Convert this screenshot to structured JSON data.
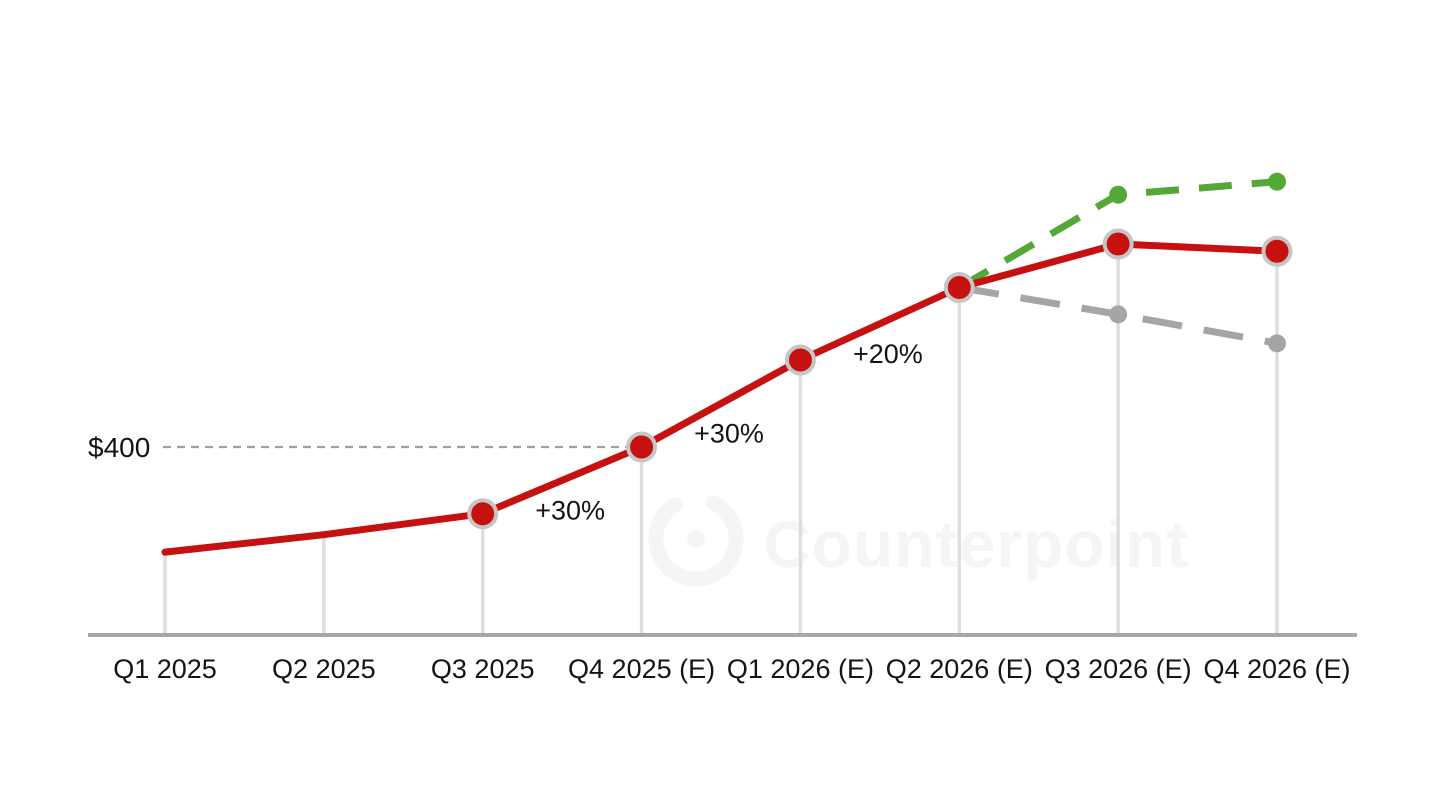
{
  "watermark": {
    "brand": "Counterpoint"
  },
  "colors": {
    "red_series": "#c61111",
    "green_series": "#54a836",
    "gray_series": "#a5a5a5",
    "marker_ring": "#c6c6c6",
    "axis": "#a8a8a8",
    "dropline": "#dedede",
    "ref_line": "#a0a0a0",
    "text": "#141414",
    "watermark": "#f5f5f5"
  },
  "chart_data": {
    "type": "line",
    "title": "",
    "xlabel": "",
    "ylabel": "",
    "unit": "$",
    "grid": "droplines",
    "y_axis_visible": false,
    "legend_position": "none",
    "categories": [
      "Q1 2025",
      "Q2 2025",
      "Q3 2025",
      "Q4 2025 (E)",
      "Q1 2026 (E)",
      "Q2 2026 (E)",
      "Q3 2026 (E)",
      "Q4 2026 (E)"
    ],
    "y_reference": {
      "label": "$400",
      "value": 400,
      "at_category": "Q4 2025 (E)"
    },
    "series": [
      {
        "name": "red-solid",
        "color": "#c61111",
        "line_style": "solid",
        "marker": "ringed-dot",
        "values": [
          255,
          279,
          308,
          400,
          520,
          620,
          680,
          670
        ],
        "markers_at": [
          2,
          3,
          4,
          5,
          6,
          7
        ]
      },
      {
        "name": "green-dashed",
        "color": "#54a836",
        "line_style": "dashed",
        "dash": "33 20",
        "marker": "dot",
        "values": [
          null,
          null,
          null,
          null,
          null,
          620,
          748,
          766
        ],
        "markers_at": [
          6,
          7
        ]
      },
      {
        "name": "gray-dashed",
        "color": "#a5a5a5",
        "line_style": "dashed",
        "dash": "40 22",
        "marker": "dot",
        "values": [
          null,
          null,
          null,
          null,
          null,
          620,
          583,
          543
        ],
        "markers_at": [
          6,
          7
        ]
      }
    ],
    "annotations": [
      {
        "text": "+30%",
        "between_indices": [
          2,
          3
        ]
      },
      {
        "text": "+30%",
        "between_indices": [
          3,
          4
        ]
      },
      {
        "text": "+20%",
        "between_indices": [
          4,
          5
        ]
      }
    ]
  }
}
